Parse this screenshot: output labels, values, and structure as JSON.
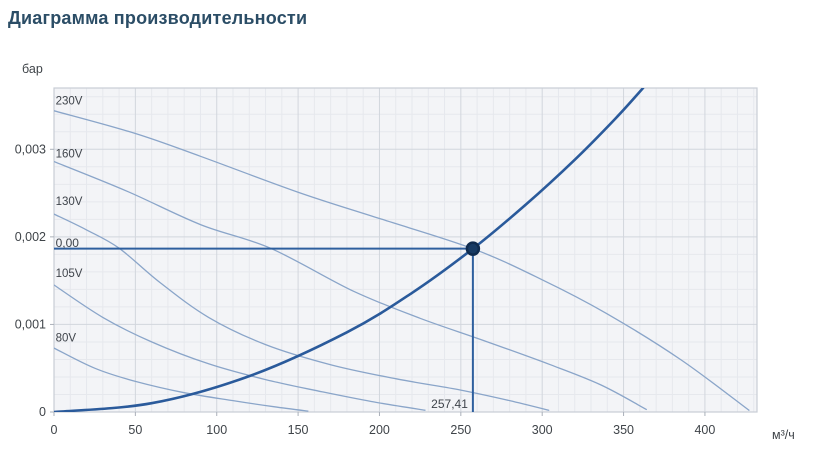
{
  "title": "Диаграмма производительности",
  "chart_data": {
    "type": "line",
    "title": "Диаграмма производительности",
    "x_axis": {
      "unit": "м³/ч",
      "max": 432,
      "minor_step": 10,
      "major_step": 50,
      "ticks": [
        {
          "v": 0,
          "label": "0"
        },
        {
          "v": 50,
          "label": "50"
        },
        {
          "v": 100,
          "label": "100"
        },
        {
          "v": 150,
          "label": "150"
        },
        {
          "v": 200,
          "label": "200"
        },
        {
          "v": 250,
          "label": "250"
        },
        {
          "v": 300,
          "label": "300"
        },
        {
          "v": 350,
          "label": "350"
        },
        {
          "v": 400,
          "label": "400"
        }
      ]
    },
    "y_axis": {
      "unit": "бар",
      "max": 0.0037,
      "minor_step": 0.0002,
      "major_step": 0.001,
      "ticks": [
        {
          "v": 0,
          "label": "0"
        },
        {
          "v": 0.001,
          "label": "0,001"
        },
        {
          "v": 0.002,
          "label": "0,002"
        },
        {
          "v": 0.003,
          "label": "0,003"
        }
      ]
    },
    "series": [
      {
        "name": "fan-curve-230v",
        "label": "230V",
        "role": "fan",
        "label_x": 1,
        "label_y": 0.00356,
        "points": [
          [
            0,
            0.00344
          ],
          [
            50,
            0.00318
          ],
          [
            90,
            0.00292
          ],
          [
            150,
            0.00251
          ],
          [
            200,
            0.00221
          ],
          [
            257.41,
            0.001865
          ],
          [
            300,
            0.00151
          ],
          [
            340,
            0.00112
          ],
          [
            385,
            0.0006
          ],
          [
            427,
            2e-05
          ]
        ]
      },
      {
        "name": "fan-curve-160v",
        "label": "160V",
        "role": "fan",
        "label_x": 1,
        "label_y": 0.00295,
        "points": [
          [
            0,
            0.00286
          ],
          [
            45,
            0.00252
          ],
          [
            90,
            0.00214
          ],
          [
            133,
            0.00187
          ],
          [
            184,
            0.00138
          ],
          [
            225,
            0.00107
          ],
          [
            265,
            0.00081
          ],
          [
            305,
            0.00054
          ],
          [
            336,
            0.00031
          ],
          [
            364,
            3e-05
          ]
        ]
      },
      {
        "name": "fan-curve-130v",
        "label": "130V",
        "role": "fan",
        "label_x": 1,
        "label_y": 0.00241,
        "points": [
          [
            0,
            0.00226
          ],
          [
            20,
            0.00208
          ],
          [
            40,
            0.00187
          ],
          [
            65,
            0.00148
          ],
          [
            95,
            0.00108
          ],
          [
            130,
            0.00077
          ],
          [
            170,
            0.00054
          ],
          [
            210,
            0.00038
          ],
          [
            250,
            0.00025
          ],
          [
            280,
            0.00013
          ],
          [
            304,
            2e-05
          ]
        ]
      },
      {
        "name": "fan-curve-105v",
        "label": "105V",
        "role": "fan",
        "label_x": 1,
        "label_y": 0.00159,
        "points": [
          [
            0,
            0.00145
          ],
          [
            30,
            0.00108
          ],
          [
            60,
            0.0008
          ],
          [
            95,
            0.00055
          ],
          [
            130,
            0.00037
          ],
          [
            165,
            0.00023
          ],
          [
            195,
            0.00012
          ],
          [
            228,
            2e-05
          ]
        ]
      },
      {
        "name": "fan-curve-80v",
        "label": "80V",
        "role": "fan",
        "label_x": 1,
        "label_y": 0.00085,
        "points": [
          [
            0,
            0.00073
          ],
          [
            25,
            0.0005
          ],
          [
            50,
            0.00035
          ],
          [
            80,
            0.00022
          ],
          [
            110,
            0.00013
          ],
          [
            135,
            6e-05
          ],
          [
            156,
            1e-05
          ]
        ]
      },
      {
        "name": "system-curve",
        "label": "",
        "role": "system",
        "points": [
          [
            0,
            0
          ],
          [
            60,
            0.0001
          ],
          [
            120,
            0.00041
          ],
          [
            180,
            0.00091
          ],
          [
            220,
            0.00136
          ],
          [
            257.41,
            0.001865
          ],
          [
            290,
            0.00237
          ],
          [
            320,
            0.00288
          ],
          [
            345,
            0.00335
          ],
          [
            362,
            0.0037
          ]
        ]
      }
    ],
    "operating_point": {
      "flow": 257.41,
      "pressure": 0.001865,
      "flow_label": "257,41",
      "pressure_label": "0,00",
      "pressure_label_y": 0.00193
    },
    "colors": {
      "title_text": "#2b4d66",
      "fan_curve": "#8aa5c9",
      "system_curve": "#2a5a9b",
      "crosshair": "#2e5f9e",
      "marker_fill": "#173a63",
      "marker_stroke": "#0f2b4e",
      "plot_bg": "#f3f4f7",
      "grid_minor": "#e6e8ed",
      "grid_major": "#d2d6dd",
      "plot_border": "#c8cdd5",
      "tick_mark": "#aab0b9",
      "tick_text": "#3f4449",
      "label_text": "#3f444b"
    },
    "legend": "none",
    "grid": "on"
  }
}
